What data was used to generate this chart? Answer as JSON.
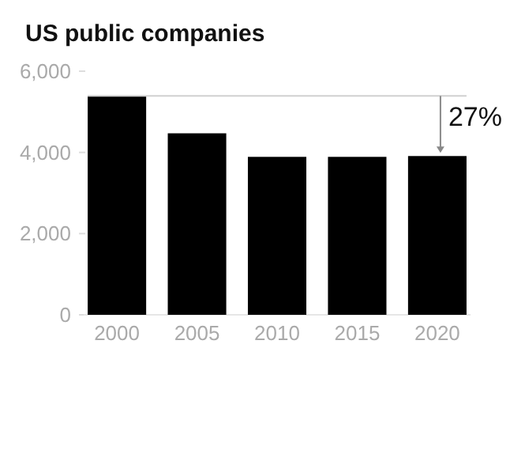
{
  "chart_data": {
    "type": "bar",
    "title": "US public companies",
    "categories": [
      "2000",
      "2005",
      "2010",
      "2015",
      "2020"
    ],
    "values": [
      5390,
      4470,
      3890,
      3890,
      3910
    ],
    "color": "#000000",
    "ylim": [
      0,
      6000
    ],
    "yticks": [
      {
        "value": 0,
        "label": "0"
      },
      {
        "value": 2000,
        "label": "2,000"
      },
      {
        "value": 4000,
        "label": "4,000"
      },
      {
        "value": 6000,
        "label": "6,000"
      }
    ],
    "ref_lines": [
      {
        "axis": "y",
        "value": 5390,
        "color": "#d0d0d0"
      }
    ],
    "annotations": [
      "27%"
    ]
  }
}
